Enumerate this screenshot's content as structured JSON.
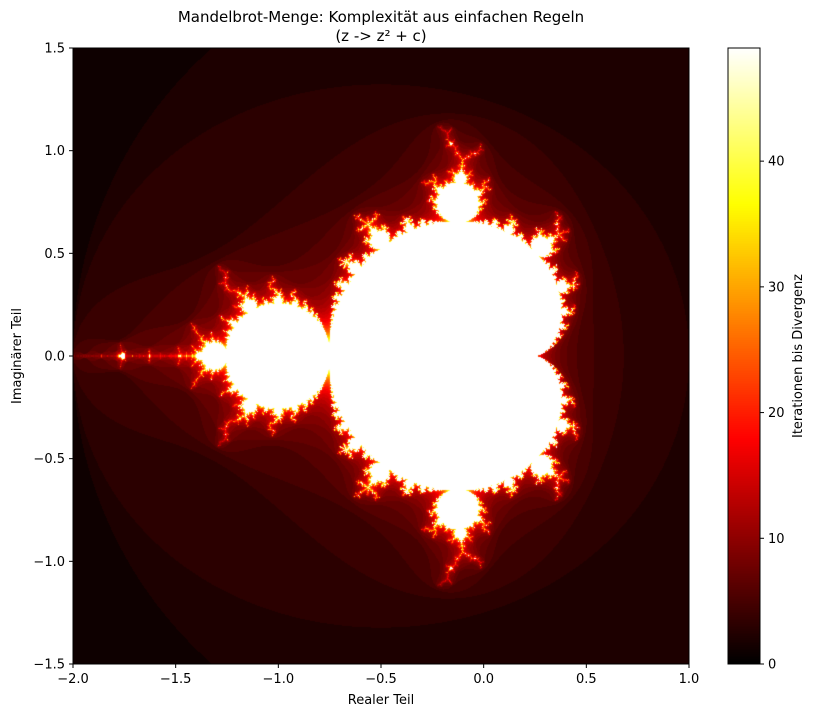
{
  "chart_data": {
    "type": "heatmap",
    "title": "Mandelbrot-Menge: Komplexität aus einfachen Regeln",
    "subtitle": "(z -> z² + c)",
    "xlabel": "Realer Teil",
    "ylabel": "Imaginärer Teil",
    "xlim": [
      -2.0,
      1.0
    ],
    "ylim": [
      -1.5,
      1.5
    ],
    "x_ticks": [
      -2.0,
      -1.5,
      -1.0,
      -0.5,
      0.0,
      0.5,
      1.0
    ],
    "x_tick_labels": [
      "−2.0",
      "−1.5",
      "−1.0",
      "−0.5",
      "0.0",
      "0.5",
      "1.0"
    ],
    "y_ticks": [
      -1.5,
      -1.0,
      -0.5,
      0.0,
      0.5,
      1.0,
      1.5
    ],
    "y_tick_labels": [
      "−1.5",
      "−1.0",
      "−0.5",
      "0.0",
      "0.5",
      "1.0",
      "1.5"
    ],
    "formula": "z -> z² + c",
    "max_iterations": 49,
    "colormap": "hot",
    "colorbar": {
      "label": "Iterationen bis Divergenz",
      "range": [
        0,
        49
      ],
      "ticks": [
        0,
        10,
        20,
        30,
        40
      ],
      "tick_labels": [
        "0",
        "10",
        "20",
        "30",
        "40"
      ]
    },
    "grid": false
  }
}
